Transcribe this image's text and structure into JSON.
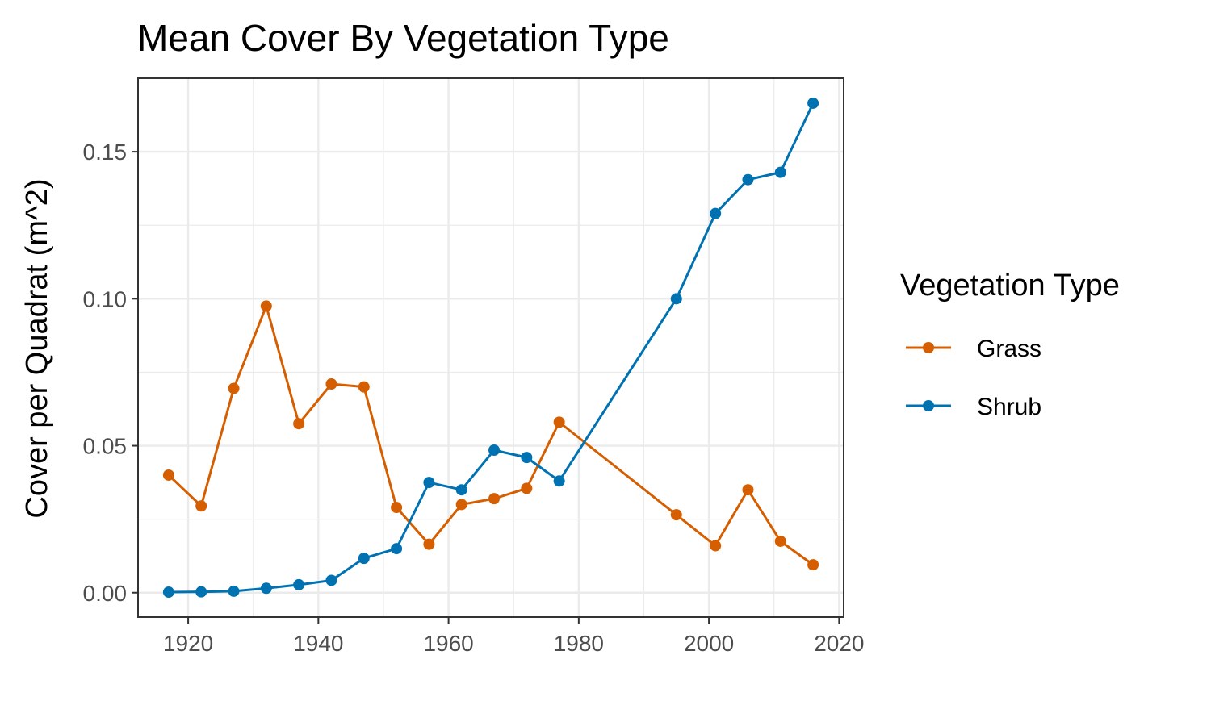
{
  "chart_data": {
    "type": "line",
    "title": "Mean Cover By Vegetation Type",
    "xlabel": "",
    "ylabel": "Cover per Quadrat (m^2)",
    "xlim": [
      1912.3,
      2020.7
    ],
    "ylim": [
      -0.0083,
      0.175
    ],
    "x_ticks": [
      1920,
      1940,
      1960,
      1980,
      2000,
      2020
    ],
    "x_tick_labels": [
      "1920",
      "1940",
      "1960",
      "1980",
      "2000",
      "2020"
    ],
    "y_ticks": [
      0.0,
      0.05,
      0.1,
      0.15
    ],
    "y_tick_labels": [
      "0.00",
      "0.05",
      "0.10",
      "0.15"
    ],
    "grid": true,
    "legend": {
      "title": "Vegetation Type",
      "position": "right"
    },
    "series": [
      {
        "name": "Grass",
        "color": "#D55E00",
        "x": [
          1917,
          1922,
          1927,
          1932,
          1937,
          1942,
          1947,
          1952,
          1957,
          1962,
          1967,
          1972,
          1977,
          1995,
          2001,
          2006,
          2011,
          2016
        ],
        "y": [
          0.04,
          0.0295,
          0.0695,
          0.0975,
          0.0575,
          0.071,
          0.07,
          0.029,
          0.0165,
          0.03,
          0.032,
          0.0355,
          0.058,
          0.0265,
          0.016,
          0.035,
          0.0175,
          0.0095
        ]
      },
      {
        "name": "Shrub",
        "color": "#0072B2",
        "x": [
          1917,
          1922,
          1927,
          1932,
          1937,
          1942,
          1947,
          1952,
          1957,
          1962,
          1967,
          1972,
          1977,
          1995,
          2001,
          2006,
          2011,
          2016
        ],
        "y": [
          0.0002,
          0.0003,
          0.0005,
          0.0015,
          0.0027,
          0.0042,
          0.0117,
          0.015,
          0.0375,
          0.035,
          0.0485,
          0.046,
          0.038,
          0.1,
          0.129,
          0.1405,
          0.143,
          0.1665
        ]
      }
    ]
  }
}
